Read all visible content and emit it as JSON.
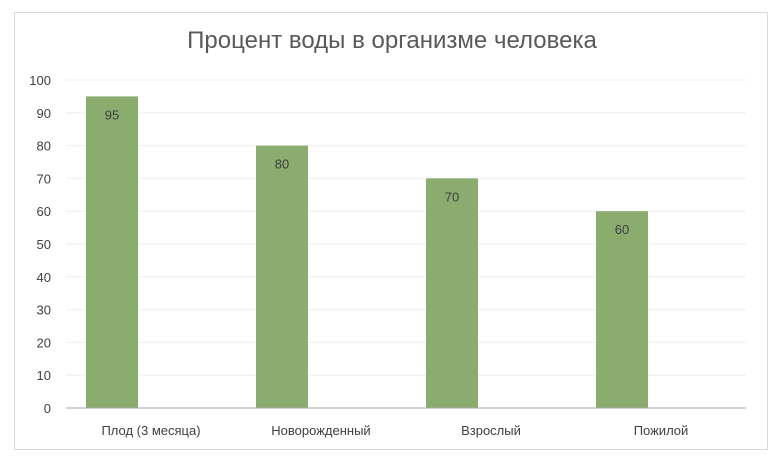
{
  "chart_data": {
    "type": "bar",
    "title": "Процент воды в организме человека",
    "xlabel": "",
    "ylabel": "",
    "categories": [
      "Плод (3 месяца)",
      "Новорожденный",
      "Взрослый",
      "Пожилой"
    ],
    "values": [
      95,
      80,
      70,
      60
    ],
    "ylim": [
      0,
      100
    ],
    "yticks": [
      0,
      10,
      20,
      30,
      40,
      50,
      60,
      70,
      80,
      90,
      100
    ],
    "grid": true,
    "legend": "none",
    "data_labels": true,
    "colors": {
      "bar": "#8aad6f",
      "grid": "#eeeeee",
      "axis": "#a6a6a6",
      "text": "#404040",
      "title": "#595959"
    }
  }
}
